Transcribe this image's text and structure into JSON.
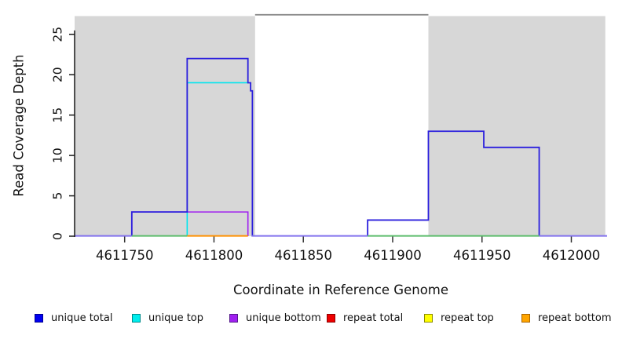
{
  "figure": {
    "background": "#ffffff",
    "plot_bg_shade": "#d7d7d7"
  },
  "chart_data": {
    "type": "line",
    "subtype": "step-coverage-plot",
    "title": "",
    "xlabel": "Coordinate in Reference Genome",
    "ylabel": "Read Coverage Depth",
    "xlim": [
      4611722,
      4612020
    ],
    "ylim": [
      0,
      27.5
    ],
    "x_ticks": [
      4611750,
      4611800,
      4611850,
      4611900,
      4611950,
      4612000
    ],
    "y_ticks": [
      0,
      5,
      10,
      15,
      20,
      25
    ],
    "grid": false,
    "legend_position": "bottom",
    "shaded_regions": [
      {
        "name": "repeat-region-left",
        "x1": 4611722,
        "x2": 4611823,
        "color": "#d7d7d7"
      },
      {
        "name": "repeat-region-right",
        "x1": 4611920,
        "x2": 4612019,
        "color": "#d7d7d7"
      }
    ],
    "gap_top_border": {
      "x1": 4611823,
      "x2": 4611920,
      "color": "#8c8c8c"
    },
    "series": [
      {
        "name": "unique top",
        "color": "#00e5ee",
        "width": 1.6,
        "segments": [
          [
            [
              4611785,
              0
            ],
            [
              4611785,
              19
            ],
            [
              4611819,
              19
            ]
          ]
        ]
      },
      {
        "name": "unique bottom",
        "color": "#a020f0",
        "width": 1.6,
        "segments": [
          [
            [
              4611754,
              0
            ],
            [
              4611754,
              3
            ],
            [
              4611819,
              3
            ],
            [
              4611819,
              0
            ]
          ]
        ]
      },
      {
        "name": "unique total",
        "color": "#2b1fdd",
        "width": 1.8,
        "segments": [
          [
            [
              4611754,
              0
            ],
            [
              4611754,
              3
            ],
            [
              4611785,
              3
            ],
            [
              4611785,
              22
            ],
            [
              4611819,
              22
            ],
            [
              4611819,
              19
            ],
            [
              4611820.5,
              19
            ],
            [
              4611820.5,
              18
            ],
            [
              4611821.5,
              18
            ],
            [
              4611821.5,
              0
            ]
          ],
          [
            [
              4611886,
              0
            ],
            [
              4611886,
              2
            ],
            [
              4611920,
              2
            ],
            [
              4611920,
              13
            ],
            [
              4611951,
              13
            ],
            [
              4611951,
              11
            ],
            [
              4611982,
              11
            ],
            [
              4611982,
              0
            ]
          ]
        ]
      }
    ],
    "baseline_segments": [
      {
        "x1": 4611722,
        "x2": 4611754,
        "color": "#8272ee"
      },
      {
        "x1": 4611754,
        "x2": 4611785,
        "color": "#5cbc6c"
      },
      {
        "x1": 4611785,
        "x2": 4611819,
        "color": "#ff9100"
      },
      {
        "x1": 4611821,
        "x2": 4611886,
        "color": "#8272ee"
      },
      {
        "x1": 4611886,
        "x2": 4611982,
        "color": "#5cbc6c"
      },
      {
        "x1": 4611982,
        "x2": 4612020,
        "color": "#8272ee"
      }
    ]
  },
  "legend": {
    "entries": [
      {
        "label": "unique total",
        "fill": "#0000f0",
        "border": "#000090"
      },
      {
        "label": "unique top",
        "fill": "#00eded",
        "border": "#008b8b"
      },
      {
        "label": "unique bottom",
        "fill": "#a020f0",
        "border": "#551a8b"
      },
      {
        "label": "repeat total",
        "fill": "#ee0000",
        "border": "#8b0000"
      },
      {
        "label": "repeat top",
        "fill": "#ffff00",
        "border": "#8b8b00"
      },
      {
        "label": "repeat bottom",
        "fill": "#ffa500",
        "border": "#a86400"
      }
    ]
  }
}
